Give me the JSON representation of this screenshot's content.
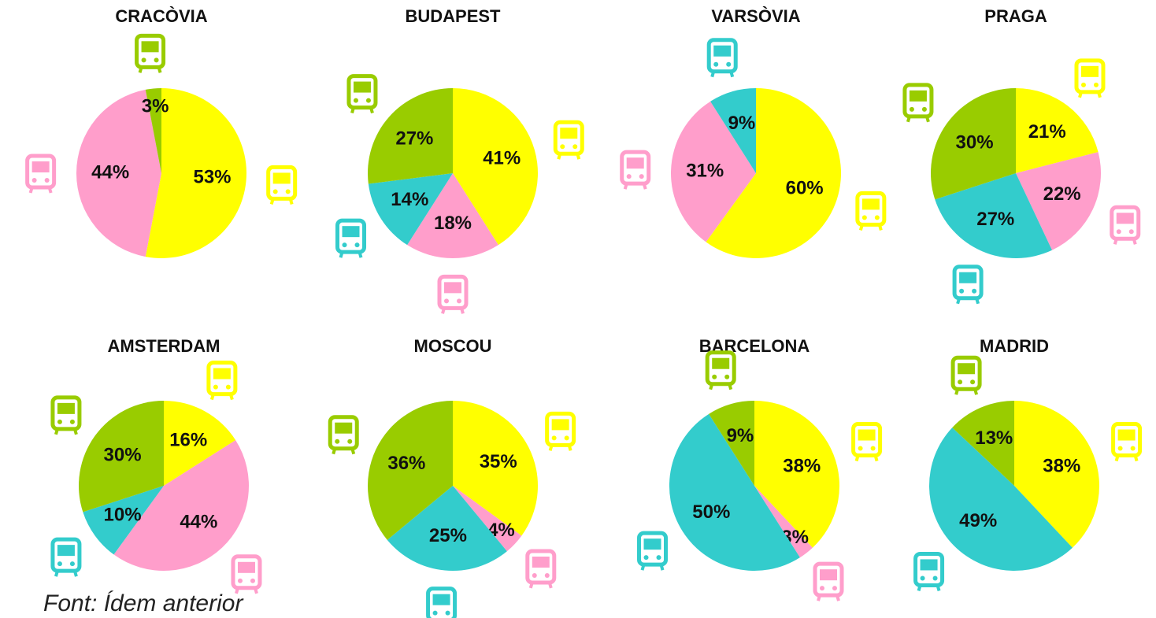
{
  "chart_data": [
    {
      "type": "pie",
      "title": "CRACÒVIA",
      "values": [
        53,
        44,
        3
      ],
      "value_labels": [
        "53%",
        "44%",
        "3%"
      ],
      "colors": [
        "#ffff00",
        "#ff9ecb",
        "#99cc00"
      ]
    },
    {
      "type": "pie",
      "title": "BUDAPEST",
      "values": [
        41,
        18,
        14,
        27
      ],
      "value_labels": [
        "41%",
        "18%",
        "14%",
        "27%"
      ],
      "colors": [
        "#ffff00",
        "#ff9ecb",
        "#33cccc",
        "#99cc00"
      ]
    },
    {
      "type": "pie",
      "title": "VARSÒVIA",
      "values": [
        60,
        31,
        9
      ],
      "value_labels": [
        "60%",
        "31%",
        "9%"
      ],
      "colors": [
        "#ffff00",
        "#ff9ecb",
        "#33cccc"
      ]
    },
    {
      "type": "pie",
      "title": "PRAGA",
      "values": [
        21,
        22,
        27,
        30
      ],
      "value_labels": [
        "21%",
        "22%",
        "27%",
        "30%"
      ],
      "colors": [
        "#ffff00",
        "#ff9ecb",
        "#33cccc",
        "#99cc00"
      ]
    },
    {
      "type": "pie",
      "title": "AMSTERDAM",
      "values": [
        16,
        44,
        10,
        30
      ],
      "value_labels": [
        "16%",
        "44%",
        "10%",
        "30%"
      ],
      "colors": [
        "#ffff00",
        "#ff9ecb",
        "#33cccc",
        "#99cc00"
      ]
    },
    {
      "type": "pie",
      "title": "MOSCOU",
      "values": [
        35,
        4,
        25,
        36
      ],
      "value_labels": [
        "35%",
        "4%",
        "25%",
        "36%"
      ],
      "colors": [
        "#ffff00",
        "#ff9ecb",
        "#33cccc",
        "#99cc00"
      ]
    },
    {
      "type": "pie",
      "title": "BARCELONA",
      "values": [
        38,
        3,
        50,
        9
      ],
      "value_labels": [
        "38%",
        "3%",
        "50%",
        "9%"
      ],
      "colors": [
        "#ffff00",
        "#ff9ecb",
        "#33cccc",
        "#99cc00"
      ]
    },
    {
      "type": "pie",
      "title": "MADRID",
      "values": [
        38,
        49,
        13
      ],
      "value_labels": [
        "38%",
        "49%",
        "13%"
      ],
      "colors": [
        "#ffff00",
        "#33cccc",
        "#99cc00"
      ]
    }
  ],
  "source": "Font: Ídem anterior"
}
